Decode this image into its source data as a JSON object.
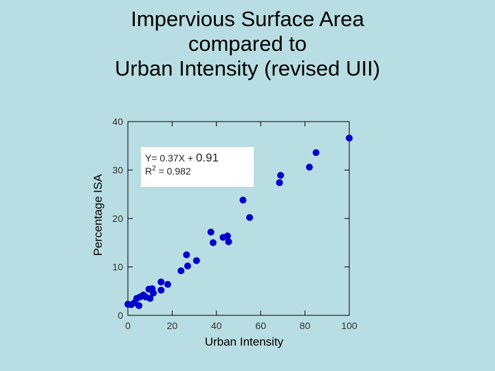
{
  "title_lines": [
    "Impervious Surface Area",
    "compared to",
    "Urban Intensity (revised UII)"
  ],
  "chart_data": {
    "type": "scatter",
    "title": "Impervious Surface Area compared to Urban Intensity (revised UII)",
    "xlabel": "Urban Intensity",
    "ylabel": "Percentage ISA",
    "xlim": [
      0,
      100
    ],
    "ylim": [
      0,
      40
    ],
    "xticks": [
      "0",
      "20",
      "40",
      "60",
      "80",
      "100"
    ],
    "yticks": [
      "0",
      "10",
      "20",
      "30",
      "40"
    ],
    "grid": false,
    "annotation": {
      "equation_prefix": "Y= 0.37X + ",
      "equation_intercept": "0.91",
      "r2_prefix": "R",
      "r2_sup": "2",
      "r2_value": " = 0.982"
    },
    "marker_color": "#0000cc",
    "points": [
      [
        0,
        2.3
      ],
      [
        1.5,
        2.2
      ],
      [
        3,
        2.6
      ],
      [
        4,
        3.5
      ],
      [
        5,
        2.0
      ],
      [
        5.5,
        3.8
      ],
      [
        7,
        4.2
      ],
      [
        8,
        3.8
      ],
      [
        9.5,
        5.4
      ],
      [
        10,
        3.5
      ],
      [
        11,
        5.5
      ],
      [
        11.5,
        4.6
      ],
      [
        15,
        5.2
      ],
      [
        15,
        6.9
      ],
      [
        18,
        6.4
      ],
      [
        24,
        9.2
      ],
      [
        26.5,
        12.5
      ],
      [
        27,
        10.2
      ],
      [
        31,
        11.3
      ],
      [
        37.5,
        17.2
      ],
      [
        38.5,
        15.0
      ],
      [
        43,
        16.1
      ],
      [
        45,
        16.4
      ],
      [
        45.5,
        15.2
      ],
      [
        52,
        23.8
      ],
      [
        55,
        20.2
      ],
      [
        68.5,
        27.4
      ],
      [
        69,
        28.9
      ],
      [
        82,
        30.6
      ],
      [
        85,
        33.6
      ],
      [
        100,
        36.6
      ]
    ]
  }
}
